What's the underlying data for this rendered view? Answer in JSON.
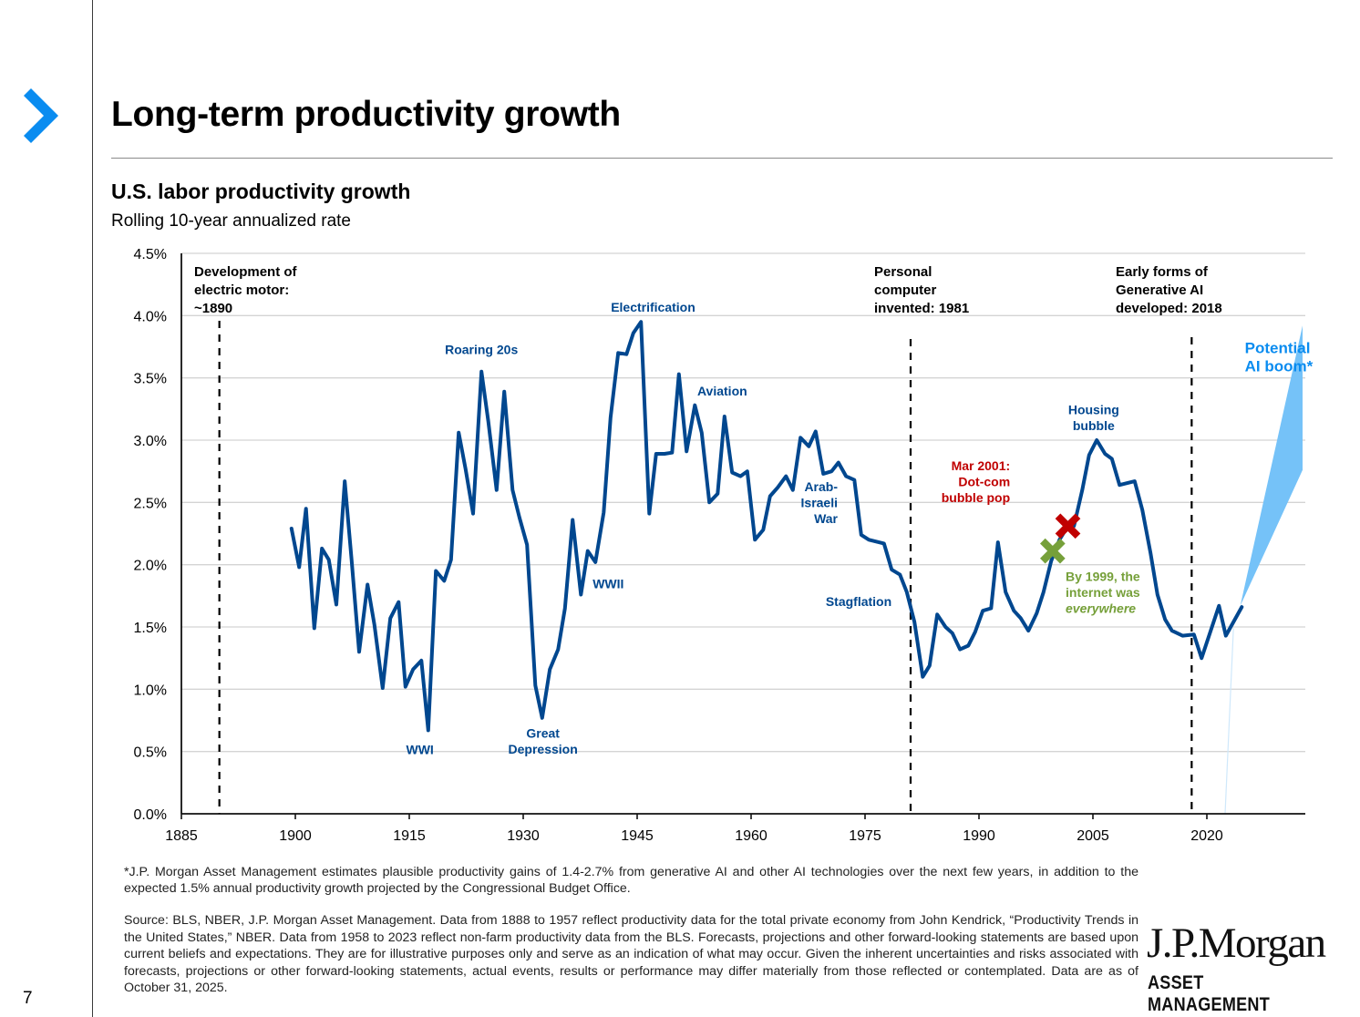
{
  "page": {
    "title": "Long-term productivity growth",
    "page_number": "7",
    "accent_color": "#0a8cf0"
  },
  "chart_data": {
    "type": "line",
    "title": "U.S. labor productivity growth",
    "subtitle": "Rolling 10-year annualized rate",
    "xlabel": "",
    "ylabel": "",
    "xlim": [
      1885,
      2033
    ],
    "ylim": [
      0,
      4.5
    ],
    "grid": true,
    "x_ticks": [
      1885,
      1900,
      1915,
      1930,
      1945,
      1960,
      1975,
      1990,
      2005,
      2020
    ],
    "x_tick_labels": [
      "1885",
      "1900",
      "1915",
      "1930",
      "1945",
      "1960",
      "1975",
      "1990",
      "2005",
      "2020"
    ],
    "y_ticks": [
      0,
      0.5,
      1.0,
      1.5,
      2.0,
      2.5,
      3.0,
      3.5,
      4.0,
      4.5
    ],
    "y_tick_labels": [
      "0.0%",
      "0.5%",
      "1.0%",
      "1.5%",
      "2.0%",
      "2.5%",
      "3.0%",
      "3.5%",
      "4.0%",
      "4.5%"
    ],
    "series": [
      {
        "name": "U.S. labor productivity growth (rolling 10-yr annualized)",
        "color": "#00478f",
        "x": [
          1899.5,
          1900.5,
          1901.4,
          1902.5,
          1903.5,
          1904.4,
          1905.4,
          1906.5,
          1907.4,
          1908.4,
          1909.5,
          1910.4,
          1911.5,
          1912.5,
          1913.6,
          1914.5,
          1915.5,
          1916.6,
          1917.5,
          1918.5,
          1919.6,
          1920.5,
          1921.5,
          1922.4,
          1923.4,
          1924.5,
          1925.4,
          1926.5,
          1927.5,
          1928.6,
          1929.5,
          1930.5,
          1931.6,
          1932.5,
          1933.5,
          1934.6,
          1935.5,
          1936.5,
          1937.6,
          1938.5,
          1939.5,
          1940.6,
          1941.5,
          1942.5,
          1943.6,
          1944.5,
          1945.5,
          1946.6,
          1947.5,
          1948.6,
          1949.6,
          1950.5,
          1951.5,
          1952.6,
          1953.5,
          1954.5,
          1955.6,
          1956.5,
          1957.5,
          1958.6,
          1959.5,
          1960.5,
          1961.6,
          1962.5,
          1963.5,
          1964.6,
          1965.5,
          1966.5,
          1967.6,
          1968.5,
          1969.5,
          1970.6,
          1971.5,
          1972.5,
          1973.6,
          1974.5,
          1975.5,
          1977.5,
          1978.5,
          1979.6,
          1980.5,
          1981.5,
          1982.6,
          1983.5,
          1984.5,
          1985.6,
          1986.5,
          1987.5,
          1988.6,
          1989.5,
          1990.5,
          1991.6,
          1992.5,
          1993.5,
          1994.6,
          1995.5,
          1996.5,
          1997.6,
          1998.5,
          1999.5,
          2000.6,
          2001.5,
          2002.5,
          2003.6,
          2004.5,
          2005.5,
          2006.6,
          2007.5,
          2008.5,
          2010.5,
          2011.5,
          2012.6,
          2013.5,
          2014.5,
          2015.4,
          2016.8,
          2018.3,
          2019.3,
          2021.6,
          2022.5,
          2024.6
        ],
        "values": [
          2.29,
          1.98,
          2.45,
          1.49,
          2.13,
          2.04,
          1.68,
          2.67,
          2.04,
          1.3,
          1.84,
          1.52,
          1.01,
          1.57,
          1.7,
          1.02,
          1.16,
          1.23,
          0.67,
          1.95,
          1.87,
          2.04,
          3.06,
          2.77,
          2.41,
          3.55,
          3.15,
          2.6,
          3.39,
          2.6,
          2.38,
          2.16,
          1.03,
          0.77,
          1.16,
          1.32,
          1.65,
          2.36,
          1.76,
          2.11,
          2.02,
          2.42,
          3.18,
          3.7,
          3.69,
          3.86,
          3.95,
          2.41,
          2.89,
          2.89,
          2.9,
          3.53,
          2.91,
          3.28,
          3.06,
          2.5,
          2.57,
          3.19,
          2.74,
          2.71,
          2.75,
          2.2,
          2.28,
          2.55,
          2.62,
          2.71,
          2.6,
          3.02,
          2.95,
          3.07,
          2.73,
          2.75,
          2.82,
          2.71,
          2.68,
          2.24,
          2.2,
          2.17,
          1.96,
          1.92,
          1.78,
          1.54,
          1.1,
          1.19,
          1.6,
          1.5,
          1.45,
          1.32,
          1.35,
          1.46,
          1.63,
          1.65,
          2.18,
          1.78,
          1.63,
          1.57,
          1.47,
          1.61,
          1.78,
          2.03,
          2.2,
          2.29,
          2.31,
          2.6,
          2.88,
          3.0,
          2.89,
          2.85,
          2.64,
          2.67,
          2.44,
          2.09,
          1.76,
          1.56,
          1.47,
          1.43,
          1.44,
          1.25,
          1.67,
          1.43,
          1.66
        ]
      }
    ],
    "projection_band": {
      "name": "Potential AI boom*",
      "color": "#75c2f8",
      "start": {
        "x": 2024.4,
        "value": 1.67
      },
      "end": {
        "x": 2032.6,
        "upper": 3.92,
        "lower": 2.76
      },
      "trace_line": {
        "from": {
          "x": 2023.5,
          "value": 1.49
        },
        "to": {
          "x": 2022.4,
          "value": 0
        }
      }
    },
    "event_lines": [
      {
        "x": 1890,
        "label_lines": [
          "Development of",
          "electric motor:",
          "~1890"
        ]
      },
      {
        "x": 1981,
        "label_lines": [
          "Personal",
          "computer",
          "invented: 1981"
        ]
      },
      {
        "x": 2018,
        "label_lines": [
          "Early forms of",
          "Generative AI",
          "developed: 2018"
        ]
      }
    ],
    "annotations": [
      {
        "id": "wwi",
        "lines": [
          "WWI"
        ],
        "x": 1916.4,
        "y": 0.48,
        "color": "#00478f",
        "anchor": "middle"
      },
      {
        "id": "roaring-20s",
        "lines": [
          "Roaring 20s"
        ],
        "x": 1924.5,
        "y": 3.69,
        "color": "#00478f",
        "anchor": "middle"
      },
      {
        "id": "great-depression",
        "lines": [
          "Great",
          "Depression"
        ],
        "x": 1932.6,
        "y": 0.61,
        "color": "#00478f",
        "anchor": "middle"
      },
      {
        "id": "wwii",
        "lines": [
          "WWII"
        ],
        "x": 1941.2,
        "y": 1.81,
        "color": "#00478f",
        "anchor": "middle"
      },
      {
        "id": "electrification",
        "lines": [
          "Electrification"
        ],
        "x": 1947.1,
        "y": 4.03,
        "color": "#00478f",
        "anchor": "middle"
      },
      {
        "id": "aviation",
        "lines": [
          "Aviation"
        ],
        "x": 1956.2,
        "y": 3.36,
        "color": "#00478f",
        "anchor": "middle"
      },
      {
        "id": "arab-israeli-war",
        "lines": [
          "Arab-",
          "Israeli",
          "War"
        ],
        "x": 1971.4,
        "y": 2.59,
        "color": "#00478f",
        "anchor": "end"
      },
      {
        "id": "stagflation",
        "lines": [
          "Stagflation"
        ],
        "x": 1978.5,
        "y": 1.67,
        "color": "#00478f",
        "anchor": "end"
      },
      {
        "id": "dot-com",
        "lines": [
          "Mar 2001:",
          "Dot-com",
          "bubble pop"
        ],
        "x": 1994.1,
        "y": 2.76,
        "color": "#c00000",
        "anchor": "end"
      },
      {
        "id": "internet-1999",
        "lines": [
          "By 1999, the",
          "internet was",
          "everywhere"
        ],
        "italic_last": true,
        "x": 2001.4,
        "y": 1.87,
        "color": "#76a03a",
        "anchor": "start"
      },
      {
        "id": "housing-bubble",
        "lines": [
          "Housing",
          "bubble"
        ],
        "x": 2005.1,
        "y": 3.21,
        "color": "#00478f",
        "anchor": "middle"
      },
      {
        "id": "potential-ai-boom",
        "lines": [
          "Potential",
          "AI boom*"
        ],
        "x": 2025.0,
        "y": 3.7,
        "color": "#0a8cf0",
        "anchor": "start",
        "large": true
      }
    ],
    "markers": [
      {
        "id": "dot-com-marker",
        "shape": "x",
        "x": 2001.7,
        "value": 2.31,
        "color": "#c00000"
      },
      {
        "id": "internet-1999-marker",
        "shape": "x",
        "x": 1999.7,
        "value": 2.11,
        "color": "#76a03a"
      }
    ]
  },
  "footnotes": {
    "asterisk_note": "*J.P. Morgan Asset Management estimates plausible productivity gains of 1.4-2.7% from generative AI and other AI technologies over the next few years, in addition to the expected 1.5% annual productivity growth projected by the Congressional Budget Office.",
    "source": "Source: BLS, NBER, J.P. Morgan Asset Management. Data from 1888 to 1957 reflect productivity data for the total private economy from John Kendrick, “Productivity Trends in the United States,” NBER. Data from 1958 to 2023 reflect non-farm productivity data from the BLS. Forecasts, projections and other forward-looking statements are based upon current beliefs and expectations. They are for illustrative purposes only and serve as an indication of what may occur. Given the inherent uncertainties and risks associated with forecasts, projections or other forward-looking statements, actual events, results or performance may differ materially from those reflected or contemplated. Data are as of October 31, 2025."
  },
  "logo": {
    "name": "J.P.Morgan",
    "subtitle": "ASSET MANAGEMENT"
  }
}
